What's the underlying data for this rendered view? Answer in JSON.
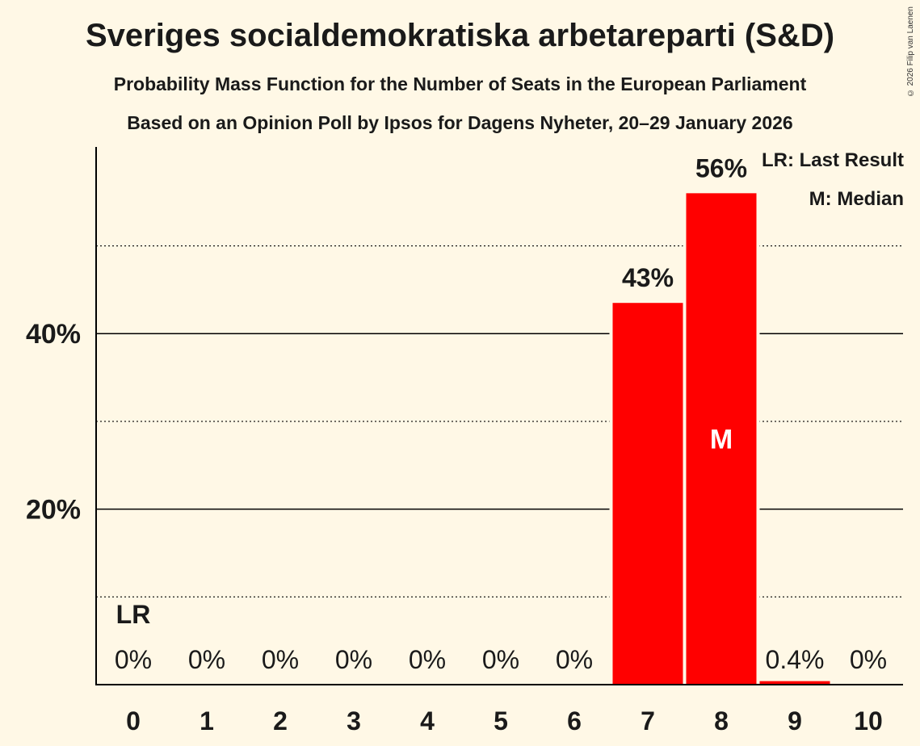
{
  "copyright": "© 2026 Filip van Laenen",
  "chart_data": {
    "type": "bar",
    "title": "Sveriges socialdemokratiska arbetareparti (S&D)",
    "subtitle": "Probability Mass Function for the Number of Seats in the European Parliament",
    "subtitle2": "Based on an Opinion Poll by Ipsos for Dagens Nyheter, 20–29 January 2026",
    "categories": [
      "0",
      "1",
      "2",
      "3",
      "4",
      "5",
      "6",
      "7",
      "8",
      "9",
      "10"
    ],
    "values": [
      0,
      0,
      0,
      0,
      0,
      0,
      0,
      43.5,
      56.0,
      0.4,
      0
    ],
    "labels": [
      "0%",
      "0%",
      "0%",
      "0%",
      "0%",
      "0%",
      "0%",
      "43%",
      "56%",
      "0.4%",
      "0%"
    ],
    "ylim": [
      0,
      61
    ],
    "yticks": [
      20,
      40
    ],
    "ytick_labels": [
      "20%",
      "40%"
    ],
    "minor_gridlines": [
      10,
      30,
      50
    ],
    "last_result_index": 0,
    "last_result_marker": "LR",
    "median_index": 8,
    "median_marker": "M",
    "bar_color": "#ff0000",
    "legend": [
      "LR: Last Result",
      "M: Median"
    ],
    "xlabel": "",
    "ylabel": ""
  }
}
